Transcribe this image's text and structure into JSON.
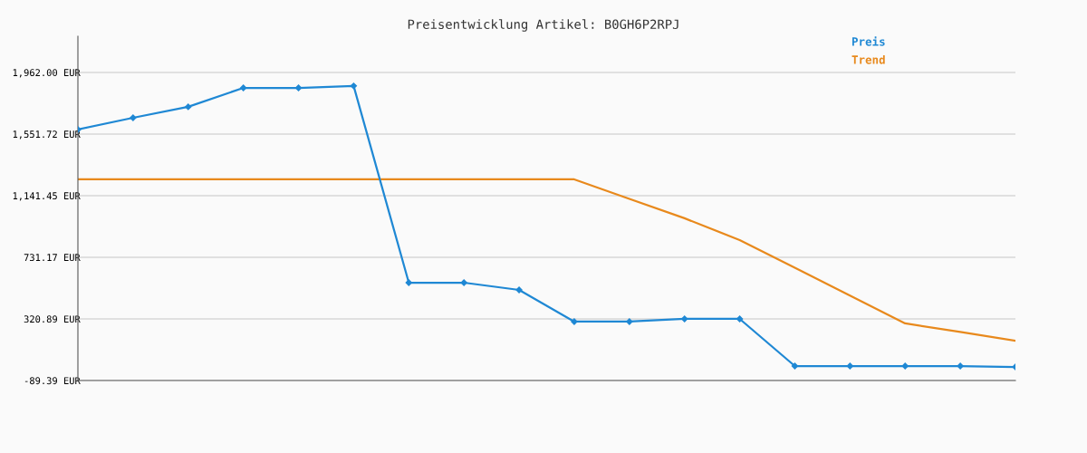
{
  "chart_data": {
    "type": "line",
    "title": "Preisentwicklung Artikel: B0GH6P2RPJ",
    "categories": [
      null,
      null,
      null,
      null,
      null,
      null,
      null,
      null,
      null,
      null,
      null,
      null,
      null,
      null,
      null,
      null,
      null,
      null
    ],
    "series": [
      {
        "name": "Preis",
        "color": "#1f88d4",
        "marker": "diamond",
        "values": [
          1582,
          1660,
          1733,
          1859,
          1859,
          1872,
          562,
          562,
          514,
          303,
          303,
          321,
          321,
          7,
          7,
          7,
          7,
          1
        ]
      },
      {
        "name": "Trend",
        "color": "#e8891c",
        "marker": "none",
        "values": [
          1250,
          1250,
          1250,
          1250,
          1250,
          1250,
          1250,
          1250,
          1250,
          1250,
          1120,
          991,
          846,
          661,
          476,
          291,
          234,
          176
        ]
      }
    ],
    "ylim": [
      -89.39,
      2203
    ],
    "yticks": [
      {
        "value": -89.39,
        "label": "-89.39 EUR"
      },
      {
        "value": 320.89,
        "label": "320.89 EUR"
      },
      {
        "value": 731.17,
        "label": "731.17 EUR"
      },
      {
        "value": 1141.45,
        "label": "1,141.45 EUR"
      },
      {
        "value": 1551.72,
        "label": "1,551.72 EUR"
      },
      {
        "value": 1962.0,
        "label": "1,962.00 EUR"
      }
    ],
    "grid": "y",
    "legend": "top right",
    "line_style": "solid"
  }
}
